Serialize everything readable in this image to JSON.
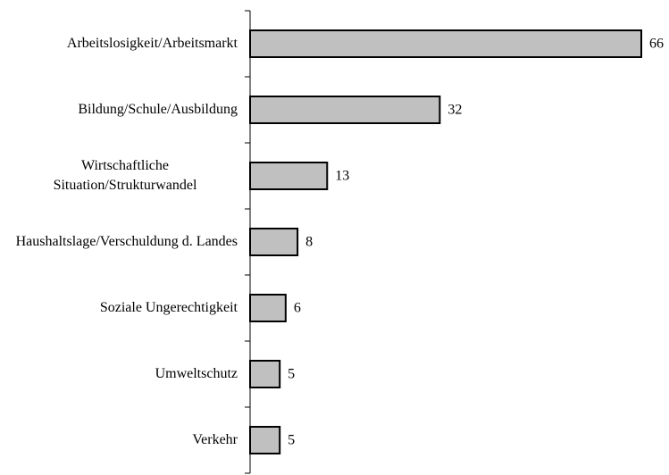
{
  "chart_data": {
    "type": "bar",
    "orientation": "horizontal",
    "categories": [
      "Arbeitslosigkeit/Arbeitsmarkt",
      "Bildung/Schule/Ausbildung",
      "Wirtschaftliche Situation/Strukturwandel",
      "Haushaltslage/Verschuldung d. Landes",
      "Soziale Ungerechtigkeit",
      "Umweltschutz",
      "Verkehr"
    ],
    "values": [
      66,
      32,
      13,
      8,
      6,
      5,
      5
    ],
    "color": "#c0c0c0"
  }
}
